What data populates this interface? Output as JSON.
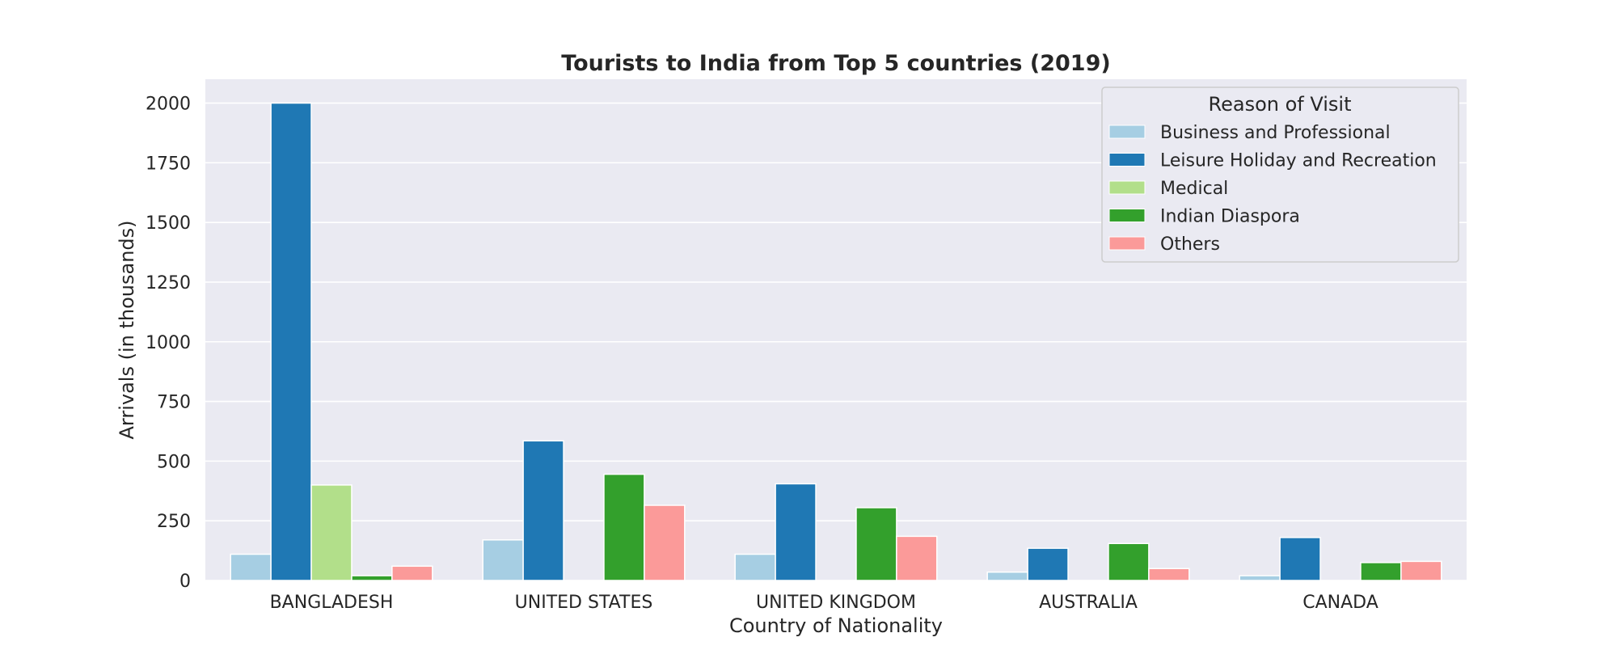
{
  "chart_data": {
    "type": "bar",
    "title": "Tourists to India from Top 5 countries (2019)",
    "xlabel": "Country of Nationality",
    "ylabel": "Arrivals (in thousands)",
    "categories": [
      "BANGLADESH",
      "UNITED STATES",
      "UNITED KINGDOM",
      "AUSTRALIA",
      "CANADA"
    ],
    "series": [
      {
        "name": "Business and Professional",
        "color": "#a6cee3",
        "values": [
          110,
          170,
          110,
          35,
          20
        ]
      },
      {
        "name": "Leisure Holiday and Recreation",
        "color": "#1f78b4",
        "values": [
          2000,
          585,
          405,
          135,
          180
        ]
      },
      {
        "name": "Medical",
        "color": "#b2df8a",
        "values": [
          400,
          0,
          0,
          0,
          0
        ]
      },
      {
        "name": "Indian Diaspora",
        "color": "#33a02c",
        "values": [
          20,
          445,
          305,
          155,
          75
        ]
      },
      {
        "name": "Others",
        "color": "#fb9a99",
        "values": [
          60,
          315,
          185,
          50,
          80
        ]
      }
    ],
    "ylim": [
      0,
      2100
    ],
    "yticks": [
      0,
      250,
      500,
      750,
      1000,
      1250,
      1500,
      1750,
      2000
    ],
    "grid": true,
    "legend": {
      "title": "Reason of Visit",
      "placement": "top-right"
    }
  }
}
